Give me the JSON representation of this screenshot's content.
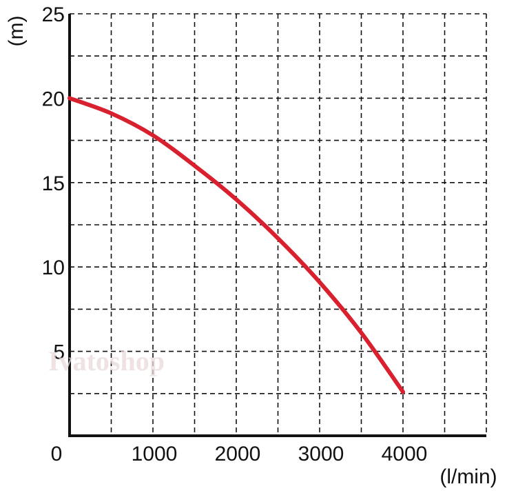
{
  "chart_data": {
    "type": "line",
    "xlabel": "(l/min)",
    "ylabel": "(m)",
    "xlim": [
      0,
      5000
    ],
    "ylim": [
      0,
      25
    ],
    "x_ticks": [
      {
        "value": 0,
        "label": "0"
      },
      {
        "value": 1000,
        "label": "1000"
      },
      {
        "value": 2000,
        "label": "2000"
      },
      {
        "value": 3000,
        "label": "3000"
      },
      {
        "value": 4000,
        "label": "4000"
      }
    ],
    "y_ticks": [
      {
        "value": 5,
        "label": "5"
      },
      {
        "value": 10,
        "label": "10"
      },
      {
        "value": 15,
        "label": "15"
      },
      {
        "value": 20,
        "label": "20"
      },
      {
        "value": 25,
        "label": "25"
      }
    ],
    "grid": true,
    "grid_step_x": 500,
    "grid_step_y": 2.5,
    "grid_style": "dashed",
    "watermark": "Ivatoshop",
    "series": [
      {
        "color": "#d9202e",
        "x": [
          0,
          500,
          1000,
          1500,
          2000,
          2500,
          3000,
          3500,
          4000
        ],
        "y": [
          20,
          19.1,
          17.8,
          16.0,
          14.0,
          11.7,
          9.1,
          6.1,
          2.6
        ]
      }
    ]
  }
}
